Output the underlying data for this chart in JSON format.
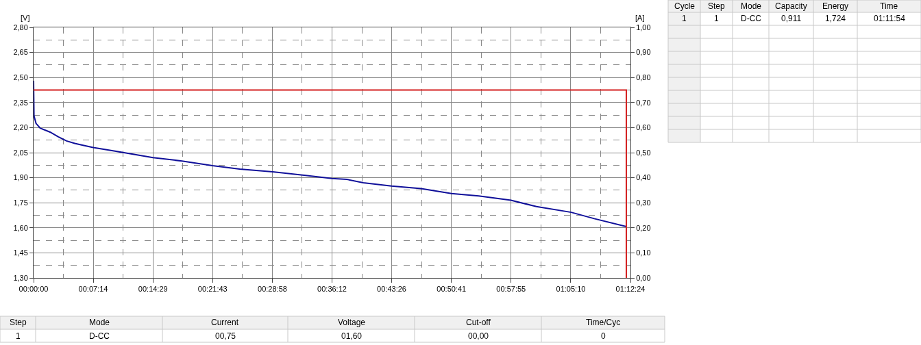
{
  "chart_data": {
    "type": "line",
    "ylabel": "[V]",
    "y2label": "[A]",
    "xlim": [
      0,
      72.4
    ],
    "ylim": [
      1.3,
      2.8
    ],
    "y2lim": [
      0,
      1
    ],
    "xticks": [
      {
        "value": 0,
        "label": "00:00:00"
      },
      {
        "value": 7.233,
        "label": "00:07:14"
      },
      {
        "value": 14.483,
        "label": "00:14:29"
      },
      {
        "value": 21.717,
        "label": "00:21:43"
      },
      {
        "value": 28.967,
        "label": "00:28:58"
      },
      {
        "value": 36.2,
        "label": "00:36:12"
      },
      {
        "value": 43.433,
        "label": "00:43:26"
      },
      {
        "value": 50.683,
        "label": "00:50:41"
      },
      {
        "value": 57.917,
        "label": "00:57:55"
      },
      {
        "value": 65.167,
        "label": "01:05:10"
      },
      {
        "value": 72.4,
        "label": "01:12:24"
      }
    ],
    "yticks": [
      {
        "value": 1.3,
        "label": "1,30"
      },
      {
        "value": 1.45,
        "label": "1,45"
      },
      {
        "value": 1.6,
        "label": "1,60"
      },
      {
        "value": 1.75,
        "label": "1,75"
      },
      {
        "value": 1.9,
        "label": "1,90"
      },
      {
        "value": 2.05,
        "label": "2,05"
      },
      {
        "value": 2.2,
        "label": "2,20"
      },
      {
        "value": 2.35,
        "label": "2,35"
      },
      {
        "value": 2.5,
        "label": "2,50"
      },
      {
        "value": 2.65,
        "label": "2,65"
      },
      {
        "value": 2.8,
        "label": "2,80"
      }
    ],
    "y2ticks": [
      {
        "value": 0,
        "label": "0,00"
      },
      {
        "value": 0.1,
        "label": "0,10"
      },
      {
        "value": 0.2,
        "label": "0,20"
      },
      {
        "value": 0.3,
        "label": "0,30"
      },
      {
        "value": 0.4,
        "label": "0,40"
      },
      {
        "value": 0.5,
        "label": "0,50"
      },
      {
        "value": 0.6,
        "label": "0,60"
      },
      {
        "value": 0.7,
        "label": "0,70"
      },
      {
        "value": 0.8,
        "label": "0,80"
      },
      {
        "value": 0.9,
        "label": "0,90"
      },
      {
        "value": 1.0,
        "label": "1,00"
      }
    ],
    "grid": true,
    "marker": "none",
    "line_style": "solid",
    "series": [
      {
        "color": "#10109a",
        "x": [
          0,
          0.05,
          0.3,
          0.8,
          2,
          3,
          4,
          5,
          6,
          7.23,
          10,
          14.48,
          18,
          21.7,
          25,
          29,
          33,
          36.2,
          38,
          40,
          43.4,
          47,
          50.7,
          54,
          57.9,
          61,
          65.2,
          68,
          71.9
        ],
        "values": [
          2.48,
          2.27,
          2.225,
          2.197,
          2.173,
          2.145,
          2.12,
          2.105,
          2.094,
          2.081,
          2.058,
          2.02,
          2.0,
          1.972,
          1.952,
          1.935,
          1.914,
          1.895,
          1.89,
          1.87,
          1.85,
          1.835,
          1.805,
          1.791,
          1.765,
          1.727,
          1.693,
          1.655,
          1.607
        ]
      },
      {
        "color": "#d42020",
        "axis": "y2",
        "x": [
          0,
          71.9,
          71.9
        ],
        "values": [
          0.75,
          0.75,
          0
        ]
      }
    ],
    "annotations": [
      "Cycle",
      "Step",
      "Mode",
      "Capacity",
      "Energy",
      "Time",
      "1",
      "1",
      "D-CC",
      "0,911",
      "1,724",
      "01:11:54",
      "Step",
      "Mode",
      "Current",
      "Voltage",
      "Cut-off",
      "Time/Cyc",
      "1",
      "D-CC",
      "00,75",
      "01,60",
      "00,00",
      "0"
    ]
  }
}
